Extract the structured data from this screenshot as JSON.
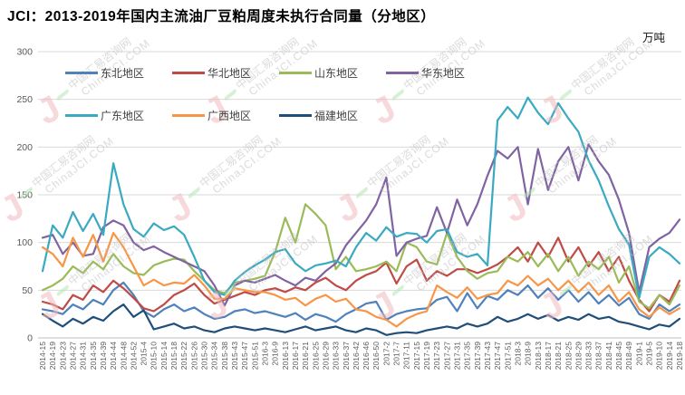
{
  "title": "JCI：2013-2019年国内主流油厂豆粕周度未执行合同量（分地区）",
  "unit_label": "万吨",
  "watermark": {
    "line1": "中国汇易咨询网",
    "line2": "ChinaJCI.COM",
    "logo_letter": "J"
  },
  "colors": {
    "grid": "#d9d9d9",
    "axis_zero": "#bfbfbf",
    "tick_text": "#595959"
  },
  "chart_data": {
    "type": "line",
    "title": "JCI：2013-2019年国内主流油厂豆粕周度未执行合同量（分地区）",
    "ylabel": "万吨",
    "ylim": [
      0,
      300
    ],
    "yticks": [
      0,
      50,
      100,
      150,
      200,
      250,
      300
    ],
    "grid": true,
    "legend_position": "top-left-inside",
    "categories": [
      "2014-15",
      "2014-19",
      "2014-23",
      "2014-27",
      "2014-31",
      "2014-35",
      "2014-39",
      "2014-44",
      "2014-48",
      "2014-52",
      "2015-4",
      "2015-10",
      "2015-14",
      "2015-18",
      "2015-22",
      "2015-26",
      "2015-30",
      "2015-34",
      "2015-38",
      "2015-43",
      "2015-47",
      "2015-51",
      "2016-3",
      "2016-9",
      "2016-13",
      "2016-17",
      "2016-21",
      "2016-25",
      "2016-29",
      "2016-33",
      "2016-37",
      "2016-42",
      "2016-46",
      "2016-50",
      "2017-2",
      "2017-7",
      "2017-11",
      "2017-15",
      "2017-19",
      "2017-23",
      "2017-27",
      "2017-31",
      "2017-35",
      "2017-39",
      "2017-43",
      "2017-47",
      "2017-51",
      "2018-3",
      "2018-9",
      "2018-13",
      "2018-17",
      "2018-21",
      "2018-25",
      "2018-29",
      "2018-33",
      "2018-37",
      "2018-41",
      "2018-45",
      "2018-49",
      "2019-1",
      "2019-5",
      "2019-10",
      "2019-14",
      "2019-18"
    ],
    "series": [
      {
        "name": "东北地区",
        "color": "#4f81bd",
        "values": [
          30,
          28,
          25,
          35,
          30,
          40,
          35,
          50,
          58,
          45,
          28,
          22,
          30,
          35,
          28,
          32,
          25,
          20,
          22,
          28,
          30,
          26,
          28,
          25,
          22,
          26,
          19,
          25,
          22,
          17,
          25,
          30,
          36,
          38,
          19,
          25,
          28,
          30,
          31,
          40,
          43,
          28,
          47,
          31,
          44,
          40,
          50,
          45,
          55,
          42,
          52,
          40,
          50,
          38,
          48,
          36,
          45,
          34,
          42,
          25,
          20,
          35,
          28,
          35
        ]
      },
      {
        "name": "华北地区",
        "color": "#bf4b47",
        "values": [
          38,
          35,
          30,
          45,
          40,
          55,
          48,
          60,
          52,
          42,
          31,
          28,
          35,
          45,
          50,
          57,
          45,
          36,
          40,
          44,
          48,
          45,
          50,
          52,
          48,
          53,
          50,
          58,
          63,
          55,
          50,
          60,
          66,
          70,
          79,
          57,
          75,
          82,
          60,
          70,
          65,
          72,
          72,
          68,
          72,
          77,
          85,
          95,
          80,
          100,
          85,
          105,
          80,
          95,
          75,
          90,
          70,
          85,
          60,
          40,
          28,
          45,
          38,
          60
        ]
      },
      {
        "name": "山东地区",
        "color": "#9bbb59",
        "values": [
          50,
          55,
          62,
          75,
          68,
          80,
          72,
          88,
          75,
          68,
          66,
          76,
          80,
          83,
          82,
          70,
          60,
          50,
          47,
          58,
          60,
          62,
          65,
          90,
          126,
          100,
          140,
          130,
          118,
          72,
          85,
          70,
          72,
          75,
          80,
          70,
          100,
          95,
          80,
          77,
          110,
          85,
          70,
          62,
          68,
          70,
          85,
          80,
          90,
          75,
          88,
          70,
          85,
          65,
          80,
          72,
          85,
          58,
          75,
          38,
          31,
          45,
          35,
          55
        ]
      },
      {
        "name": "华东地区",
        "color": "#8064a2",
        "values": [
          105,
          108,
          88,
          100,
          86,
          88,
          116,
          123,
          118,
          100,
          92,
          96,
          90,
          85,
          80,
          75,
          70,
          55,
          34,
          55,
          60,
          58,
          62,
          66,
          60,
          55,
          63,
          60,
          70,
          78,
          97,
          110,
          123,
          140,
          168,
          86,
          100,
          104,
          107,
          137,
          110,
          145,
          118,
          140,
          170,
          196,
          188,
          200,
          140,
          198,
          155,
          185,
          200,
          165,
          203,
          185,
          171,
          145,
          110,
          48,
          95,
          104,
          110,
          124
        ]
      },
      {
        "name": "广东地区",
        "color": "#3aa9c2",
        "values": [
          70,
          118,
          105,
          132,
          112,
          130,
          108,
          183,
          140,
          114,
          106,
          120,
          113,
          117,
          108,
          85,
          60,
          48,
          45,
          60,
          69,
          76,
          82,
          90,
          93,
          78,
          70,
          76,
          78,
          81,
          75,
          95,
          110,
          102,
          116,
          106,
          110,
          109,
          100,
          112,
          114,
          90,
          85,
          88,
          76,
          228,
          242,
          230,
          252,
          236,
          224,
          246,
          230,
          216,
          186,
          165,
          138,
          114,
          98,
          42,
          85,
          95,
          88,
          78
        ]
      },
      {
        "name": "广西地区",
        "color": "#f79646",
        "values": [
          95,
          88,
          75,
          105,
          85,
          108,
          80,
          110,
          95,
          75,
          55,
          61,
          55,
          58,
          57,
          66,
          55,
          41,
          41,
          52,
          50,
          48,
          48,
          45,
          40,
          42,
          34,
          41,
          45,
          38,
          41,
          30,
          28,
          22,
          19,
          12,
          20,
          25,
          28,
          55,
          48,
          42,
          53,
          41,
          45,
          47,
          60,
          55,
          65,
          55,
          62,
          50,
          60,
          48,
          58,
          45,
          55,
          38,
          48,
          30,
          22,
          32,
          25,
          31
        ]
      },
      {
        "name": "福建地区",
        "color": "#1f4e79",
        "values": [
          25,
          18,
          12,
          20,
          15,
          22,
          18,
          28,
          35,
          22,
          29,
          9,
          12,
          15,
          10,
          12,
          8,
          6,
          10,
          12,
          10,
          8,
          10,
          8,
          6,
          9,
          12,
          8,
          10,
          12,
          8,
          6,
          10,
          8,
          3,
          5,
          6,
          5,
          8,
          10,
          12,
          10,
          15,
          12,
          15,
          22,
          17,
          20,
          25,
          20,
          24,
          18,
          22,
          19,
          25,
          20,
          22,
          17,
          15,
          12,
          9,
          14,
          12,
          20
        ]
      }
    ]
  }
}
